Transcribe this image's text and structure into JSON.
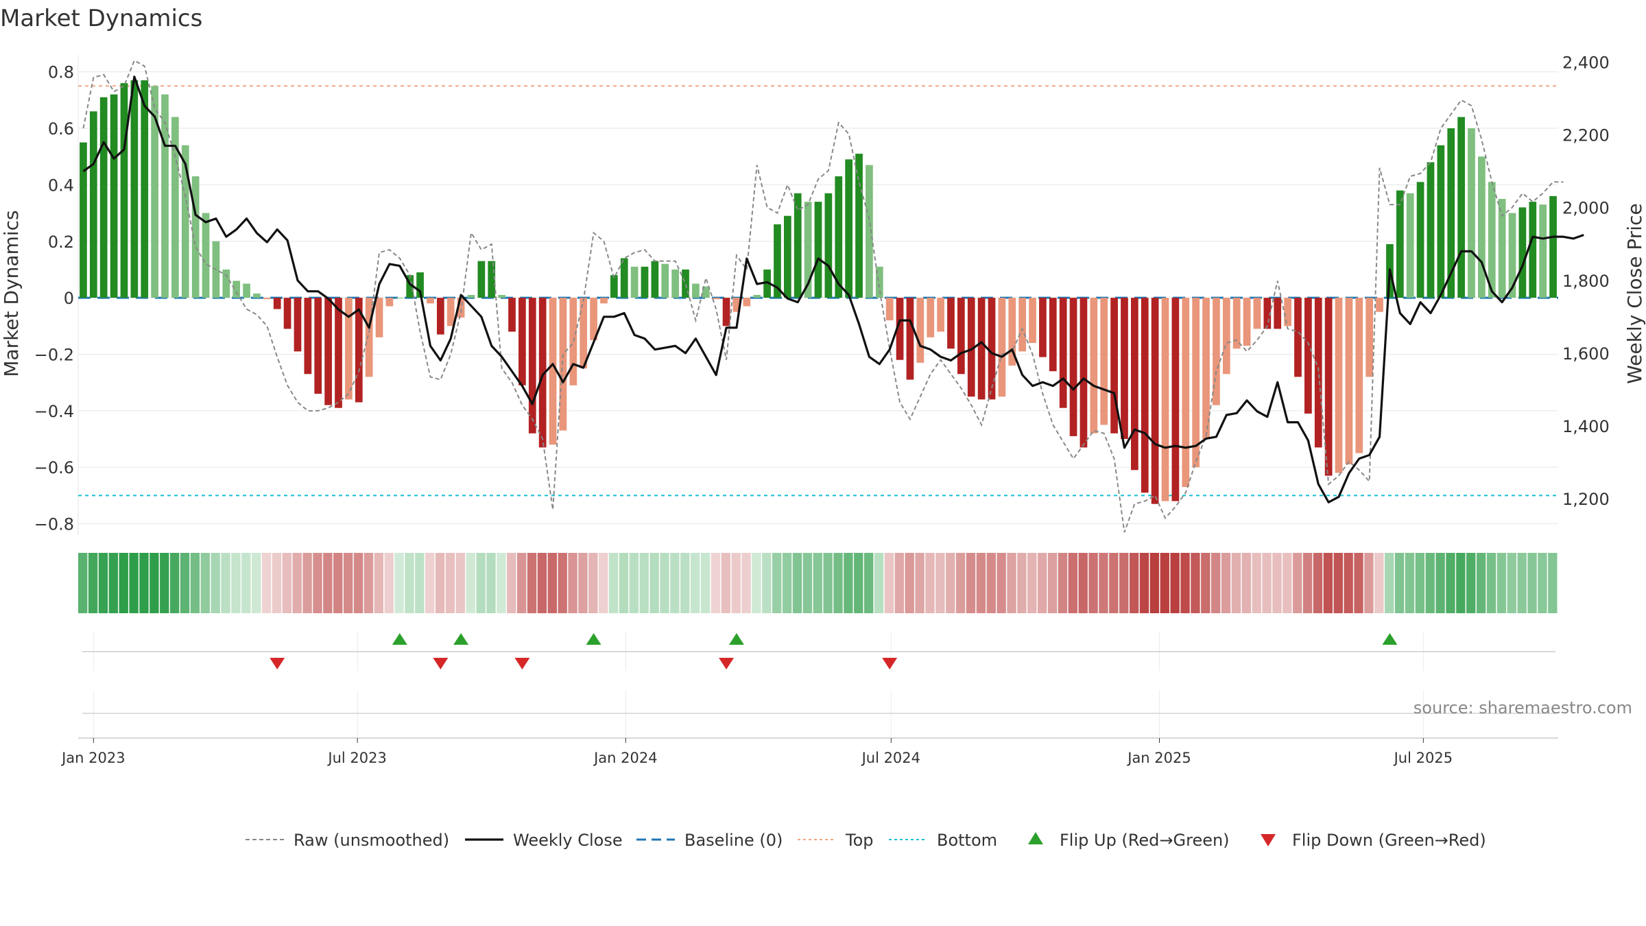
{
  "chart_data": {
    "type": "bar",
    "title": "Market Dynamics",
    "ylabel": "Market Dynamics",
    "y2label": "Weekly Close Price",
    "ylim": [
      -0.84,
      0.86
    ],
    "y2lim": [
      1100,
      2420
    ],
    "yticks": [
      0.8,
      0.6,
      0.4,
      0.2,
      0,
      -0.2,
      -0.4,
      -0.6,
      -0.8
    ],
    "yticklabels": [
      "0.8",
      "0.6",
      "0.4",
      "0.2",
      "0",
      "−0.2",
      "−0.4",
      "−0.6",
      "−0.8"
    ],
    "y2ticks": [
      2400,
      2200,
      2000,
      1800,
      1600,
      1400,
      1200
    ],
    "y2ticklabels": [
      "2,400",
      "2,200",
      "2,000",
      "1,800",
      "1,600",
      "1,400",
      "1,200"
    ],
    "x_start": "2022-12-25",
    "x_step_days": 7,
    "xticks": [
      {
        "date": "2023-01-01",
        "label": "Jan 2023"
      },
      {
        "date": "2023-07-01",
        "label": "Jul 2023"
      },
      {
        "date": "2024-01-01",
        "label": "Jan 2024"
      },
      {
        "date": "2024-07-01",
        "label": "Jul 2024"
      },
      {
        "date": "2025-01-01",
        "label": "Jan 2025"
      },
      {
        "date": "2025-07-01",
        "label": "Jul 2025"
      }
    ],
    "top_line": 0.75,
    "bottom_line": -0.7,
    "baseline": 0,
    "series": [
      {
        "name": "Market Dynamics",
        "kind": "bar",
        "values": [
          0.55,
          0.66,
          0.71,
          0.72,
          0.76,
          0.77,
          0.77,
          0.75,
          0.72,
          0.64,
          0.54,
          0.43,
          0.3,
          0.2,
          0.1,
          0.06,
          0.05,
          0.015,
          -0.005,
          -0.04,
          -0.11,
          -0.19,
          -0.27,
          -0.34,
          -0.38,
          -0.39,
          -0.36,
          -0.37,
          -0.28,
          -0.14,
          -0.03,
          0,
          0.08,
          0.09,
          -0.02,
          -0.13,
          -0.1,
          -0.07,
          0.01,
          0.13,
          0.13,
          0.01,
          -0.12,
          -0.31,
          -0.48,
          -0.53,
          -0.52,
          -0.47,
          -0.31,
          -0.25,
          -0.15,
          -0.02,
          0.08,
          0.14,
          0.11,
          0.11,
          0.13,
          0.12,
          0.1,
          0.1,
          0.05,
          0.04,
          -0.005,
          -0.1,
          -0.05,
          -0.03,
          0.01,
          0.1,
          0.26,
          0.29,
          0.37,
          0.34,
          0.34,
          0.37,
          0.43,
          0.49,
          0.51,
          0.47,
          0.11,
          -0.08,
          -0.22,
          -0.29,
          -0.23,
          -0.14,
          -0.12,
          -0.18,
          -0.27,
          -0.35,
          -0.36,
          -0.36,
          -0.35,
          -0.24,
          -0.19,
          -0.16,
          -0.21,
          -0.26,
          -0.39,
          -0.49,
          -0.53,
          -0.48,
          -0.45,
          -0.48,
          -0.5,
          -0.61,
          -0.69,
          -0.73,
          -0.72,
          -0.72,
          -0.67,
          -0.6,
          -0.5,
          -0.38,
          -0.27,
          -0.18,
          -0.17,
          -0.11,
          -0.11,
          -0.11,
          -0.1,
          -0.28,
          -0.41,
          -0.53,
          -0.63,
          -0.62,
          -0.59,
          -0.55,
          -0.28,
          -0.05,
          0.19,
          0.38,
          0.37,
          0.41,
          0.48,
          0.54,
          0.6,
          0.64,
          0.6,
          0.5,
          0.41,
          0.35,
          0.3,
          0.32,
          0.34,
          0.33,
          0.36
        ]
      },
      {
        "name": "Raw (unsmoothed)",
        "kind": "line",
        "values": [
          0.6,
          0.78,
          0.79,
          0.73,
          0.75,
          0.84,
          0.82,
          0.67,
          0.62,
          0.5,
          0.36,
          0.18,
          0.12,
          0.1,
          0.08,
          0.02,
          -0.04,
          -0.06,
          -0.1,
          -0.21,
          -0.31,
          -0.37,
          -0.4,
          -0.4,
          -0.39,
          -0.37,
          -0.34,
          -0.26,
          -0.12,
          0.16,
          0.17,
          0.14,
          0.08,
          -0.12,
          -0.28,
          -0.29,
          -0.2,
          -0.05,
          0.23,
          0.17,
          0.19,
          -0.25,
          -0.3,
          -0.38,
          -0.43,
          -0.5,
          -0.75,
          -0.2,
          -0.16,
          -0.01,
          0.23,
          0.2,
          0.07,
          0.14,
          0.16,
          0.17,
          0.13,
          0.13,
          0.13,
          0.05,
          -0.08,
          0.07,
          -0.04,
          -0.22,
          0.15,
          0.1,
          0.47,
          0.32,
          0.3,
          0.4,
          0.31,
          0.33,
          0.42,
          0.45,
          0.62,
          0.58,
          0.41,
          0.28,
          0.03,
          -0.18,
          -0.37,
          -0.43,
          -0.35,
          -0.27,
          -0.22,
          -0.27,
          -0.32,
          -0.38,
          -0.45,
          -0.32,
          -0.2,
          -0.19,
          -0.11,
          -0.2,
          -0.34,
          -0.45,
          -0.51,
          -0.57,
          -0.52,
          -0.47,
          -0.48,
          -0.57,
          -0.83,
          -0.73,
          -0.72,
          -0.7,
          -0.78,
          -0.74,
          -0.69,
          -0.58,
          -0.49,
          -0.26,
          -0.16,
          -0.15,
          -0.19,
          -0.15,
          -0.1,
          0.06,
          -0.11,
          -0.12,
          -0.16,
          -0.25,
          -0.66,
          -0.63,
          -0.58,
          -0.61,
          -0.65,
          0.46,
          0.33,
          0.33,
          0.43,
          0.44,
          0.48,
          0.6,
          0.65,
          0.7,
          0.68,
          0.56,
          0.41,
          0.29,
          0.32,
          0.37,
          0.34,
          0.37,
          0.41,
          0.41
        ]
      },
      {
        "name": "Weekly Close",
        "kind": "line",
        "axis": "right",
        "values": [
          2100,
          2120,
          2180,
          2135,
          2160,
          2360,
          2280,
          2250,
          2170,
          2170,
          2120,
          1980,
          1960,
          1970,
          1920,
          1940,
          1970,
          1930,
          1905,
          1940,
          1910,
          1800,
          1770,
          1770,
          1750,
          1720,
          1700,
          1720,
          1670,
          1790,
          1845,
          1840,
          1790,
          1770,
          1620,
          1580,
          1640,
          1760,
          1730,
          1700,
          1620,
          1590,
          1550,
          1510,
          1460,
          1540,
          1570,
          1520,
          1570,
          1560,
          1630,
          1700,
          1700,
          1710,
          1650,
          1640,
          1610,
          1615,
          1620,
          1600,
          1640,
          1590,
          1540,
          1670,
          1670,
          1860,
          1790,
          1795,
          1780,
          1750,
          1740,
          1790,
          1860,
          1840,
          1790,
          1760,
          1680,
          1590,
          1570,
          1610,
          1690,
          1690,
          1620,
          1610,
          1590,
          1580,
          1600,
          1610,
          1630,
          1600,
          1590,
          1610,
          1540,
          1510,
          1520,
          1510,
          1530,
          1500,
          1530,
          1510,
          1500,
          1490,
          1340,
          1390,
          1380,
          1350,
          1340,
          1345,
          1340,
          1345,
          1365,
          1370,
          1430,
          1435,
          1470,
          1440,
          1425,
          1520,
          1410,
          1410,
          1360,
          1240,
          1190,
          1205,
          1270,
          1310,
          1320,
          1370,
          1830,
          1710,
          1680,
          1740,
          1710,
          1760,
          1820,
          1880,
          1880,
          1850,
          1770,
          1740,
          1780,
          1840,
          1920,
          1915,
          1920,
          1920,
          1915,
          1925
        ]
      }
    ],
    "regime_strip": {
      "values": [
        0.55,
        0.66,
        0.71,
        0.72,
        0.76,
        0.77,
        0.77,
        0.75,
        0.72,
        0.64,
        0.54,
        0.43,
        0.3,
        0.2,
        0.1,
        0.06,
        0.05,
        0.015,
        -0.005,
        -0.04,
        -0.11,
        -0.19,
        -0.27,
        -0.34,
        -0.38,
        -0.39,
        -0.36,
        -0.37,
        -0.28,
        -0.14,
        -0.03,
        0,
        0.08,
        0.09,
        -0.02,
        -0.13,
        -0.1,
        -0.07,
        0.01,
        0.13,
        0.13,
        0.01,
        -0.12,
        -0.31,
        -0.48,
        -0.53,
        -0.52,
        -0.47,
        -0.31,
        -0.25,
        -0.15,
        -0.02,
        0.08,
        0.14,
        0.11,
        0.11,
        0.13,
        0.12,
        0.1,
        0.1,
        0.05,
        0.04,
        -0.005,
        -0.1,
        -0.05,
        -0.03,
        0.01,
        0.1,
        0.26,
        0.29,
        0.37,
        0.34,
        0.34,
        0.37,
        0.43,
        0.49,
        0.51,
        0.47,
        0.11,
        -0.08,
        -0.22,
        -0.29,
        -0.23,
        -0.14,
        -0.12,
        -0.18,
        -0.27,
        -0.35,
        -0.36,
        -0.36,
        -0.35,
        -0.24,
        -0.19,
        -0.16,
        -0.21,
        -0.26,
        -0.39,
        -0.49,
        -0.53,
        -0.48,
        -0.45,
        -0.48,
        -0.5,
        -0.61,
        -0.69,
        -0.73,
        -0.72,
        -0.72,
        -0.67,
        -0.6,
        -0.5,
        -0.38,
        -0.27,
        -0.18,
        -0.17,
        -0.11,
        -0.11,
        -0.11,
        -0.1,
        -0.28,
        -0.41,
        -0.53,
        -0.63,
        -0.62,
        -0.59,
        -0.55,
        -0.28,
        -0.05,
        0.19,
        0.38,
        0.37,
        0.41,
        0.48,
        0.54,
        0.6,
        0.64,
        0.6,
        0.5,
        0.41,
        0.35,
        0.3,
        0.32,
        0.34,
        0.33,
        0.36
      ]
    },
    "flip_up_weeks": [
      31,
      37,
      50,
      64,
      128
    ],
    "flip_down_weeks": [
      19,
      35,
      43,
      63,
      79
    ],
    "legend": {
      "placement": "bottom",
      "items": [
        {
          "label": "Raw (unsmoothed)",
          "style": "dashed",
          "color": "#888888"
        },
        {
          "label": "Weekly Close",
          "style": "solid",
          "color": "#111111"
        },
        {
          "label": "Baseline (0)",
          "style": "dash",
          "color": "#1f77b4"
        },
        {
          "label": "Top",
          "style": "dotted",
          "color": "#f4a582"
        },
        {
          "label": "Bottom",
          "style": "dotted",
          "color": "#17becf"
        },
        {
          "label": "Flip Up (Red→Green)",
          "style": "triangle-up",
          "color": "#2ca02c"
        },
        {
          "label": "Flip Down (Green→Red)",
          "style": "triangle-down",
          "color": "#d62728"
        }
      ]
    },
    "source": "source: sharemaestro.com",
    "colors": {
      "strong_green": "#228b22",
      "light_green": "#7fbf7f",
      "strong_red": "#b22222",
      "light_red": "#e9967a",
      "top": "#f4a582",
      "bottom": "#17becf",
      "baseline": "#1f77b4"
    },
    "grid": true
  }
}
